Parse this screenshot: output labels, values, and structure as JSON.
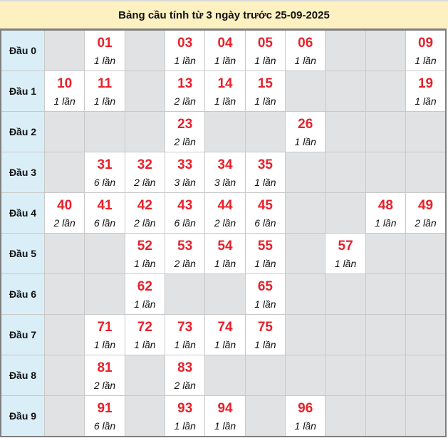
{
  "title": "Bảng cầu tính từ 3 ngày trước 25-09-2025",
  "colors": {
    "number": "#e8202a",
    "title_bg": "#fdf1c2",
    "label_bg": "#daeef8",
    "empty_bg": "#e1e2e4"
  },
  "rows": [
    {
      "label": "Đầu 0",
      "cells": [
        null,
        {
          "num": "01",
          "count": "1 lần"
        },
        null,
        {
          "num": "03",
          "count": "1 lần"
        },
        {
          "num": "04",
          "count": "1 lần"
        },
        {
          "num": "05",
          "count": "1 lần"
        },
        {
          "num": "06",
          "count": "1 lần"
        },
        null,
        null,
        {
          "num": "09",
          "count": "1 lần"
        }
      ]
    },
    {
      "label": "Đầu 1",
      "cells": [
        {
          "num": "10",
          "count": "1 lần"
        },
        {
          "num": "11",
          "count": "1 lần"
        },
        null,
        {
          "num": "13",
          "count": "2 lần"
        },
        {
          "num": "14",
          "count": "1 lần"
        },
        {
          "num": "15",
          "count": "1 lần"
        },
        null,
        null,
        null,
        {
          "num": "19",
          "count": "1 lần"
        }
      ]
    },
    {
      "label": "Đầu 2",
      "cells": [
        null,
        null,
        null,
        {
          "num": "23",
          "count": "2 lần"
        },
        null,
        null,
        {
          "num": "26",
          "count": "1 lần"
        },
        null,
        null,
        null
      ]
    },
    {
      "label": "Đầu 3",
      "cells": [
        null,
        {
          "num": "31",
          "count": "6 lần"
        },
        {
          "num": "32",
          "count": "2 lần"
        },
        {
          "num": "33",
          "count": "3 lần"
        },
        {
          "num": "34",
          "count": "3 lần"
        },
        {
          "num": "35",
          "count": "1 lần"
        },
        null,
        null,
        null,
        null
      ]
    },
    {
      "label": "Đầu 4",
      "cells": [
        {
          "num": "40",
          "count": "2 lần"
        },
        {
          "num": "41",
          "count": "6 lần"
        },
        {
          "num": "42",
          "count": "2 lần"
        },
        {
          "num": "43",
          "count": "6 lần"
        },
        {
          "num": "44",
          "count": "2 lần"
        },
        {
          "num": "45",
          "count": "6 lần"
        },
        null,
        null,
        {
          "num": "48",
          "count": "1 lần"
        },
        {
          "num": "49",
          "count": "2 lần"
        }
      ]
    },
    {
      "label": "Đầu 5",
      "cells": [
        null,
        null,
        {
          "num": "52",
          "count": "1 lần"
        },
        {
          "num": "53",
          "count": "2 lần"
        },
        {
          "num": "54",
          "count": "1 lần"
        },
        {
          "num": "55",
          "count": "1 lần"
        },
        null,
        {
          "num": "57",
          "count": "1 lần"
        },
        null,
        null
      ]
    },
    {
      "label": "Đầu 6",
      "cells": [
        null,
        null,
        {
          "num": "62",
          "count": "1 lần"
        },
        null,
        null,
        {
          "num": "65",
          "count": "1 lần"
        },
        null,
        null,
        null,
        null
      ]
    },
    {
      "label": "Đầu 7",
      "cells": [
        null,
        {
          "num": "71",
          "count": "1 lần"
        },
        {
          "num": "72",
          "count": "1 lần"
        },
        {
          "num": "73",
          "count": "1 lần"
        },
        {
          "num": "74",
          "count": "1 lần"
        },
        {
          "num": "75",
          "count": "1 lần"
        },
        null,
        null,
        null,
        null
      ]
    },
    {
      "label": "Đầu 8",
      "cells": [
        null,
        {
          "num": "81",
          "count": "2 lần"
        },
        null,
        {
          "num": "83",
          "count": "2 lần"
        },
        null,
        null,
        null,
        null,
        null,
        null
      ]
    },
    {
      "label": "Đầu 9",
      "cells": [
        null,
        {
          "num": "91",
          "count": "6 lần"
        },
        null,
        {
          "num": "93",
          "count": "1 lần"
        },
        {
          "num": "94",
          "count": "1 lần"
        },
        null,
        {
          "num": "96",
          "count": "1 lần"
        },
        null,
        null,
        null
      ]
    }
  ]
}
